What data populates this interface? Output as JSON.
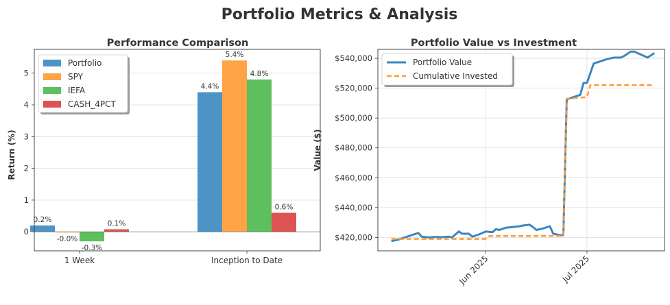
{
  "figure_title": "Portfolio Metrics & Analysis",
  "colors": {
    "portfolio": "#3a87c0",
    "spy": "#ff9933",
    "iefa": "#4cb84c",
    "cash": "#d94040",
    "invested": "#ff9933",
    "title": "#333333"
  },
  "chart_data": [
    {
      "type": "bar",
      "title": "Performance Comparison",
      "xlabel": "",
      "ylabel": "Return (%)",
      "ylim": [
        -0.6,
        5.75
      ],
      "yticks": [
        "0",
        "1",
        "2",
        "3",
        "4",
        "5"
      ],
      "categories": [
        "1 Week",
        "Inception to Date"
      ],
      "series": [
        {
          "name": "Portfolio",
          "values": [
            0.2,
            4.4
          ],
          "labels": [
            "0.2%",
            "4.4%"
          ]
        },
        {
          "name": "SPY",
          "values": [
            -0.02,
            5.4
          ],
          "labels": [
            "-0.0%",
            "5.4%"
          ]
        },
        {
          "name": "IEFA",
          "values": [
            -0.3,
            4.8
          ],
          "labels": [
            "-0.3%",
            "4.8%"
          ]
        },
        {
          "name": "CASH_4PCT",
          "values": [
            0.08,
            0.6
          ],
          "labels": [
            "0.1%",
            "0.6%"
          ]
        }
      ],
      "grid": true,
      "legend": "top-left"
    },
    {
      "type": "line",
      "title": "Portfolio Value vs Investment",
      "xlabel": "",
      "ylabel": "Value ($)",
      "ylim": [
        411000,
        546000
      ],
      "yticks": [
        "$420,000",
        "$440,000",
        "$460,000",
        "$480,000",
        "$500,000",
        "$520,000",
        "$540,000"
      ],
      "xticks": [
        "Jun 2025",
        "Jul 2025"
      ],
      "grid": true,
      "legend": "top-left",
      "series": [
        {
          "name": "Portfolio Value",
          "style": "solid",
          "points": [
            [
              "2025-05-04",
              417500
            ],
            [
              "2025-05-06",
              418500
            ],
            [
              "2025-05-08",
              420000
            ],
            [
              "2025-05-10",
              421500
            ],
            [
              "2025-05-12",
              423000
            ],
            [
              "2025-05-13",
              420500
            ],
            [
              "2025-05-15",
              420000
            ],
            [
              "2025-05-17",
              420300
            ],
            [
              "2025-05-19",
              420200
            ],
            [
              "2025-05-21",
              420500
            ],
            [
              "2025-05-22",
              420000
            ],
            [
              "2025-05-24",
              424000
            ],
            [
              "2025-05-25",
              422500
            ],
            [
              "2025-05-27",
              422500
            ],
            [
              "2025-05-28",
              420500
            ],
            [
              "2025-05-30",
              422000
            ],
            [
              "2025-06-01",
              424000
            ],
            [
              "2025-06-03",
              423500
            ],
            [
              "2025-06-04",
              425500
            ],
            [
              "2025-06-05",
              425000
            ],
            [
              "2025-06-07",
              426500
            ],
            [
              "2025-06-09",
              427000
            ],
            [
              "2025-06-11",
              427500
            ],
            [
              "2025-06-12",
              428000
            ],
            [
              "2025-06-14",
              428500
            ],
            [
              "2025-06-15",
              427000
            ],
            [
              "2025-06-16",
              425000
            ],
            [
              "2025-06-18",
              426000
            ],
            [
              "2025-06-20",
              427500
            ],
            [
              "2025-06-21",
              422500
            ],
            [
              "2025-06-23",
              421500
            ],
            [
              "2025-06-24",
              421500
            ],
            [
              "2025-06-25",
              512500
            ],
            [
              "2025-06-27",
              514000
            ],
            [
              "2025-06-29",
              515500
            ],
            [
              "2025-06-30",
              523500
            ],
            [
              "2025-07-01",
              523500
            ],
            [
              "2025-07-03",
              536500
            ],
            [
              "2025-07-05",
              538000
            ],
            [
              "2025-07-07",
              539500
            ],
            [
              "2025-07-09",
              540500
            ],
            [
              "2025-07-11",
              540500
            ],
            [
              "2025-07-12",
              541500
            ],
            [
              "2025-07-14",
              544500
            ],
            [
              "2025-07-15",
              544500
            ],
            [
              "2025-07-17",
              542500
            ],
            [
              "2025-07-19",
              540500
            ],
            [
              "2025-07-21",
              543500
            ]
          ]
        },
        {
          "name": "Cumulative Invested",
          "style": "dashed",
          "points": [
            [
              "2025-05-04",
              419000
            ],
            [
              "2025-06-01",
              419000
            ],
            [
              "2025-06-02",
              421000
            ],
            [
              "2025-06-24",
              421000
            ],
            [
              "2025-06-25",
              513000
            ],
            [
              "2025-07-01",
              514000
            ],
            [
              "2025-07-02",
              522000
            ],
            [
              "2025-07-21",
              522000
            ]
          ]
        }
      ]
    }
  ]
}
